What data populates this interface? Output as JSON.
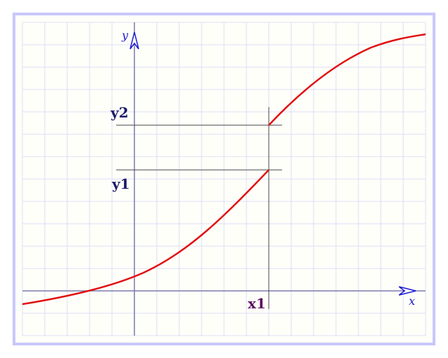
{
  "diagram": {
    "axis_labels": {
      "x": "x",
      "y": "y"
    },
    "point_labels": {
      "x1": "x1",
      "y1": "y1",
      "y2": "y2"
    },
    "colors": {
      "curve": "#e01010",
      "axis": "#1a1ad0",
      "grid": "#d8d8f4",
      "frame": "#c8c8fa",
      "label_y": "#1a1a6a",
      "label_x": "#5a1060"
    }
  }
}
